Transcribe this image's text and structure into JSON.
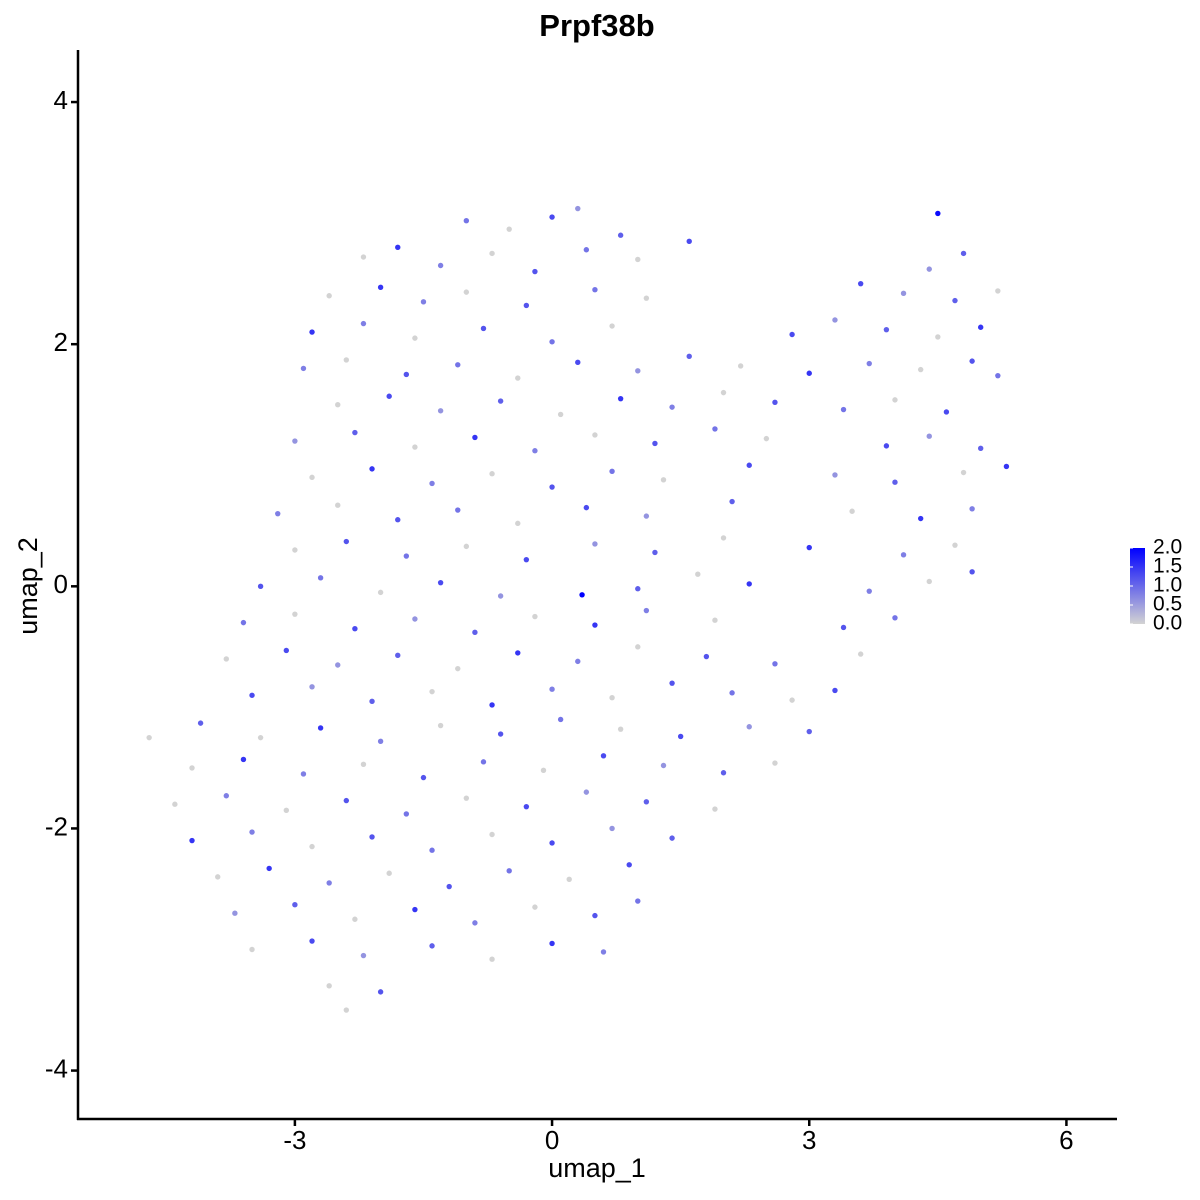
{
  "chart_data": {
    "type": "scatter",
    "title": "Prpf38b",
    "x_label": "umap_1",
    "y_label": "umap_2",
    "xlim": [
      -5.53,
      6.59
    ],
    "ylim": [
      -4.4,
      4.43
    ],
    "xticks": [
      -3,
      0,
      3,
      6
    ],
    "yticks": [
      -4,
      -2,
      0,
      2,
      4
    ],
    "color_scale": {
      "low": "#d3d3d3",
      "high": "#0000ff",
      "lim": [
        0,
        2
      ],
      "ticks": [
        {
          "value": 2,
          "label": "2.0"
        },
        1.5,
        {
          "value": 1,
          "label": "1.0"
        },
        0.5,
        {
          "value": 0,
          "label": "0.0"
        }
      ]
    },
    "x": [
      -1.0,
      -0.5,
      0.0,
      0.3,
      0.8,
      4.5,
      -2.2,
      -1.8,
      -1.3,
      -0.7,
      -0.2,
      0.4,
      1.0,
      1.6,
      4.4,
      4.8,
      -2.6,
      -2.0,
      -1.5,
      -1.0,
      -0.3,
      0.5,
      1.1,
      3.6,
      4.1,
      4.7,
      5.2,
      -2.8,
      -2.2,
      -1.6,
      -0.8,
      0.0,
      0.7,
      2.8,
      3.3,
      3.9,
      4.5,
      5.0,
      -2.9,
      -2.4,
      -1.7,
      -1.1,
      -0.4,
      0.3,
      1.0,
      1.6,
      2.2,
      3.0,
      3.7,
      4.3,
      4.9,
      5.2,
      -2.5,
      -1.9,
      -1.3,
      -0.6,
      0.1,
      0.8,
      1.4,
      2.0,
      2.6,
      3.4,
      4.0,
      4.6,
      -3.0,
      -2.3,
      -1.6,
      -0.9,
      -0.2,
      0.5,
      1.2,
      1.9,
      2.5,
      3.9,
      4.4,
      5.0,
      -2.8,
      -2.1,
      -1.4,
      -0.7,
      0.0,
      0.7,
      1.3,
      2.3,
      3.3,
      4.0,
      4.8,
      5.3,
      -3.2,
      -2.5,
      -1.8,
      -1.1,
      -0.4,
      0.4,
      1.1,
      2.1,
      3.5,
      4.3,
      4.9,
      -3.0,
      -2.4,
      -1.7,
      -1.0,
      -0.3,
      0.5,
      1.2,
      2.0,
      3.0,
      4.1,
      4.7,
      -3.4,
      -2.7,
      -2.0,
      -1.3,
      -0.6,
      0.35,
      1.0,
      1.7,
      2.3,
      3.7,
      4.4,
      4.9,
      -3.6,
      -3.0,
      -2.3,
      -1.6,
      -0.9,
      -0.2,
      0.5,
      1.1,
      1.9,
      3.4,
      4.0,
      -3.8,
      -3.1,
      -2.5,
      -1.8,
      -1.1,
      -0.4,
      0.3,
      1.0,
      1.8,
      2.6,
      3.6,
      -3.5,
      -2.8,
      -2.1,
      -1.4,
      -0.7,
      0.0,
      0.7,
      1.4,
      2.1,
      2.8,
      3.3,
      -4.7,
      -4.1,
      -3.4,
      -2.7,
      -2.0,
      -1.3,
      -0.6,
      0.1,
      0.8,
      1.5,
      2.3,
      3.0,
      -4.2,
      -3.6,
      -2.9,
      -2.2,
      -1.5,
      -0.8,
      -0.1,
      0.6,
      1.3,
      2.0,
      2.6,
      -4.4,
      -3.8,
      -3.1,
      -2.4,
      -1.7,
      -1.0,
      -0.3,
      0.4,
      1.1,
      1.9,
      -4.2,
      -3.5,
      -2.8,
      -2.1,
      -1.4,
      -0.7,
      0.0,
      0.7,
      1.4,
      -3.9,
      -3.3,
      -2.6,
      -1.9,
      -1.2,
      -0.5,
      0.2,
      0.9,
      -3.7,
      -3.0,
      -2.3,
      -1.6,
      -0.9,
      -0.2,
      0.5,
      1.0,
      -3.5,
      -2.8,
      -2.2,
      -1.4,
      -0.7,
      0.0,
      0.6,
      -2.6,
      -2.0,
      -2.4
    ],
    "y": [
      3.02,
      2.95,
      3.05,
      3.12,
      2.9,
      3.08,
      2.72,
      2.8,
      2.65,
      2.75,
      2.6,
      2.78,
      2.7,
      2.85,
      2.62,
      2.75,
      2.4,
      2.47,
      2.35,
      2.43,
      2.32,
      2.45,
      2.38,
      2.5,
      2.42,
      2.36,
      2.44,
      2.1,
      2.17,
      2.05,
      2.13,
      2.02,
      2.15,
      2.08,
      2.2,
      2.12,
      2.06,
      2.14,
      1.8,
      1.87,
      1.75,
      1.83,
      1.72,
      1.85,
      1.78,
      1.9,
      1.82,
      1.76,
      1.84,
      1.79,
      1.86,
      1.74,
      1.5,
      1.57,
      1.45,
      1.53,
      1.42,
      1.55,
      1.48,
      1.6,
      1.52,
      1.46,
      1.54,
      1.44,
      1.2,
      1.27,
      1.15,
      1.23,
      1.12,
      1.25,
      1.18,
      1.3,
      1.22,
      1.16,
      1.24,
      1.14,
      0.9,
      0.97,
      0.85,
      0.93,
      0.82,
      0.95,
      0.88,
      1.0,
      0.92,
      0.86,
      0.94,
      0.99,
      0.6,
      0.67,
      0.55,
      0.63,
      0.52,
      0.65,
      0.58,
      0.7,
      0.62,
      0.56,
      0.64,
      0.3,
      0.37,
      0.25,
      0.33,
      0.22,
      0.35,
      0.28,
      0.4,
      0.32,
      0.26,
      0.34,
      0.0,
      0.07,
      -0.05,
      0.03,
      -0.08,
      -0.07,
      -0.02,
      0.1,
      0.02,
      -0.04,
      0.04,
      0.12,
      -0.3,
      -0.23,
      -0.35,
      -0.27,
      -0.38,
      -0.25,
      -0.32,
      -0.2,
      -0.28,
      -0.34,
      -0.26,
      -0.6,
      -0.53,
      -0.65,
      -0.57,
      -0.68,
      -0.55,
      -0.62,
      -0.5,
      -0.58,
      -0.64,
      -0.56,
      -0.9,
      -0.83,
      -0.95,
      -0.87,
      -0.98,
      -0.85,
      -0.92,
      -0.8,
      -0.88,
      -0.94,
      -0.86,
      -1.25,
      -1.13,
      -1.25,
      -1.17,
      -1.28,
      -1.15,
      -1.22,
      -1.1,
      -1.18,
      -1.24,
      -1.16,
      -1.2,
      -1.5,
      -1.43,
      -1.55,
      -1.47,
      -1.58,
      -1.45,
      -1.52,
      -1.4,
      -1.48,
      -1.54,
      -1.46,
      -1.8,
      -1.73,
      -1.85,
      -1.77,
      -1.88,
      -1.75,
      -1.82,
      -1.7,
      -1.78,
      -1.84,
      -2.1,
      -2.03,
      -2.15,
      -2.07,
      -2.18,
      -2.05,
      -2.12,
      -2.0,
      -2.08,
      -2.4,
      -2.33,
      -2.45,
      -2.37,
      -2.48,
      -2.35,
      -2.42,
      -2.3,
      -2.7,
      -2.63,
      -2.75,
      -2.67,
      -2.78,
      -2.65,
      -2.72,
      -2.6,
      -3.0,
      -2.93,
      -3.05,
      -2.97,
      -3.08,
      -2.95,
      -3.02,
      -3.3,
      -3.35,
      -3.5
    ],
    "values": [
      0.9,
      0,
      1.3,
      0.6,
      1.1,
      1.9,
      0,
      1.5,
      0.8,
      0,
      1.2,
      0.9,
      0,
      1.3,
      0.6,
      1.1,
      0,
      1.5,
      0.8,
      0,
      1.2,
      0.9,
      0,
      1.3,
      0.6,
      1.1,
      0,
      1.5,
      0.8,
      0,
      1.2,
      0.9,
      0,
      1.3,
      0.6,
      1.1,
      0,
      1.5,
      0.8,
      0,
      1.2,
      0.9,
      0,
      1.3,
      0.6,
      1.1,
      0,
      1.5,
      0.8,
      0,
      1.2,
      0.9,
      0,
      1.3,
      0.6,
      1.1,
      0,
      1.5,
      0.8,
      0,
      1.2,
      0.9,
      0,
      1.3,
      0.6,
      1.1,
      0,
      1.5,
      0.8,
      0,
      1.2,
      0.9,
      0,
      1.3,
      0.6,
      1.1,
      0,
      1.5,
      0.8,
      0,
      1.2,
      0.9,
      0,
      1.3,
      0.6,
      1.1,
      0,
      1.5,
      0.8,
      0,
      1.2,
      0.9,
      0,
      1.3,
      0.6,
      1.1,
      0,
      1.5,
      0.8,
      0,
      1.2,
      0.9,
      0,
      1.3,
      0.6,
      1.1,
      0,
      1.5,
      0.8,
      0,
      1.2,
      0.9,
      0,
      1.3,
      0.6,
      2.0,
      1.1,
      0,
      1.5,
      0.8,
      0,
      1.2,
      0.9,
      0,
      1.3,
      0.6,
      1.1,
      0,
      1.5,
      0.8,
      0,
      1.2,
      0.9,
      0,
      1.3,
      0.6,
      1.1,
      0,
      1.5,
      0.8,
      0,
      1.2,
      0.9,
      0,
      1.3,
      0.6,
      1.1,
      0,
      1.5,
      0.8,
      0,
      1.2,
      0.9,
      0,
      1.3,
      0,
      1.1,
      0,
      1.5,
      0.8,
      0,
      1.2,
      0.9,
      0,
      1.3,
      0.6,
      1.1,
      0,
      1.5,
      0.8,
      0,
      1.2,
      0.9,
      0,
      1.3,
      0.6,
      1.1,
      0,
      0,
      0.8,
      0,
      1.2,
      0.9,
      0,
      1.3,
      0.6,
      1.1,
      0,
      1.5,
      0.8,
      0,
      1.2,
      0.9,
      0,
      1.3,
      0.6,
      1.1,
      0,
      1.5,
      0.8,
      0,
      1.2,
      0.9,
      0,
      1.3,
      0.6,
      1.1,
      0,
      1.5,
      0.8,
      0,
      1.2,
      0.9,
      0,
      1.3,
      0.6,
      1.1,
      0,
      1.5,
      0.8,
      0,
      1.2,
      0
    ]
  }
}
